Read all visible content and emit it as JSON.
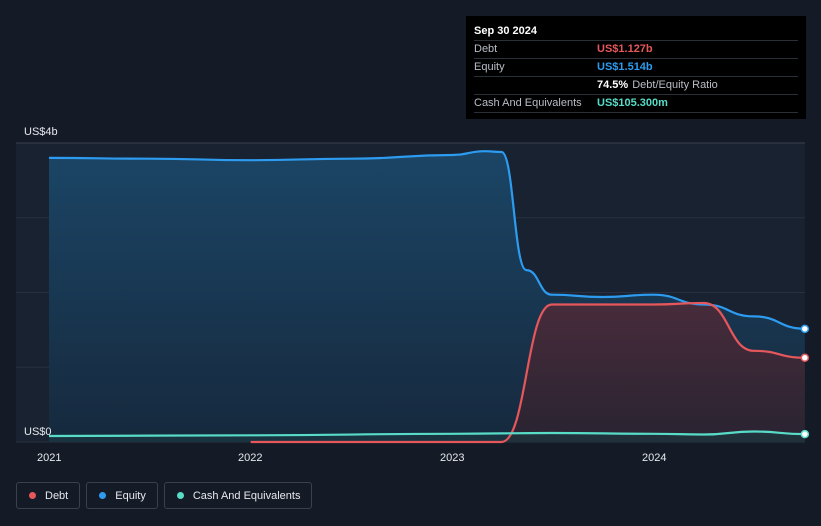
{
  "chart_data": {
    "type": "area",
    "x_ticks": [
      "2021",
      "2022",
      "2023",
      "2024"
    ],
    "y_labels": [
      "US$4b",
      "US$0"
    ],
    "ylim": [
      0,
      4.0
    ],
    "series": [
      {
        "name": "Equity",
        "color": "#2d9cf0",
        "points": [
          [
            "2021-01-01",
            3.8
          ],
          [
            "2021-07-01",
            3.79
          ],
          [
            "2022-01-01",
            3.77
          ],
          [
            "2022-07-01",
            3.79
          ],
          [
            "2023-01-01",
            3.84
          ],
          [
            "2023-03-01",
            3.89
          ],
          [
            "2023-03-31",
            3.88
          ],
          [
            "2023-05-15",
            2.3
          ],
          [
            "2023-06-30",
            1.97
          ],
          [
            "2023-09-30",
            1.94
          ],
          [
            "2023-12-31",
            1.97
          ],
          [
            "2024-03-31",
            1.84
          ],
          [
            "2024-06-30",
            1.68
          ],
          [
            "2024-09-30",
            1.514
          ]
        ]
      },
      {
        "name": "Debt",
        "color": "#e5575b",
        "points": [
          [
            "2022-01-01",
            0.0
          ],
          [
            "2023-03-31",
            0.0
          ],
          [
            "2023-06-30",
            1.84
          ],
          [
            "2023-09-30",
            1.84
          ],
          [
            "2023-12-31",
            1.84
          ],
          [
            "2024-03-31",
            1.86
          ],
          [
            "2024-06-30",
            1.22
          ],
          [
            "2024-09-30",
            1.127
          ]
        ]
      },
      {
        "name": "Cash And Equivalents",
        "color": "#58dcc8",
        "points": [
          [
            "2021-01-01",
            0.08
          ],
          [
            "2022-01-01",
            0.09
          ],
          [
            "2023-01-01",
            0.11
          ],
          [
            "2023-06-30",
            0.12
          ],
          [
            "2023-12-31",
            0.11
          ],
          [
            "2024-03-31",
            0.1
          ],
          [
            "2024-06-30",
            0.14
          ],
          [
            "2024-09-30",
            0.1053
          ]
        ]
      }
    ],
    "tooltip": {
      "date": "Sep 30 2024",
      "rows": [
        {
          "label": "Debt",
          "value": "US$1.127b",
          "color": "#e5575b"
        },
        {
          "label": "Equity",
          "value": "US$1.514b",
          "color": "#2d9cf0"
        },
        {
          "label": "",
          "ratio_value": "74.5%",
          "ratio_label": "Debt/Equity Ratio"
        },
        {
          "label": "Cash And Equivalents",
          "value": "US$105.300m",
          "color": "#58dcc8"
        }
      ]
    },
    "legend": [
      {
        "name": "Debt",
        "color": "#e5575b"
      },
      {
        "name": "Equity",
        "color": "#2d9cf0"
      },
      {
        "name": "Cash And Equivalents",
        "color": "#58dcc8"
      }
    ]
  }
}
